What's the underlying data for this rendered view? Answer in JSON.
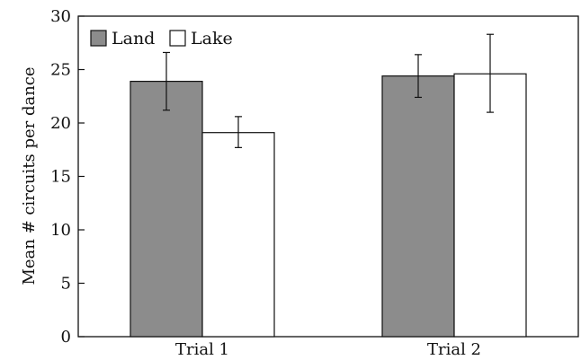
{
  "chart_data": {
    "type": "bar",
    "title": "",
    "xlabel": "",
    "ylabel": "Mean # circuits per dance",
    "ylim": [
      0,
      30
    ],
    "yticks": [
      0,
      5,
      10,
      15,
      20,
      25,
      30
    ],
    "categories": [
      "Trial 1",
      "Trial 2"
    ],
    "series": [
      {
        "name": "Land",
        "color": "#8c8c8c",
        "values": [
          23.9,
          24.4
        ],
        "error_low": [
          21.2,
          22.4
        ],
        "error_high": [
          26.6,
          26.4
        ]
      },
      {
        "name": "Lake",
        "color": "#ffffff",
        "values": [
          19.1,
          24.6
        ],
        "error_low": [
          17.7,
          21.0
        ],
        "error_high": [
          20.6,
          28.3
        ]
      }
    ],
    "legend": {
      "placement": "top-left",
      "items": [
        {
          "label": "Land",
          "color": "#8c8c8c"
        },
        {
          "label": "Lake",
          "color": "#ffffff"
        }
      ]
    },
    "grid": false
  }
}
